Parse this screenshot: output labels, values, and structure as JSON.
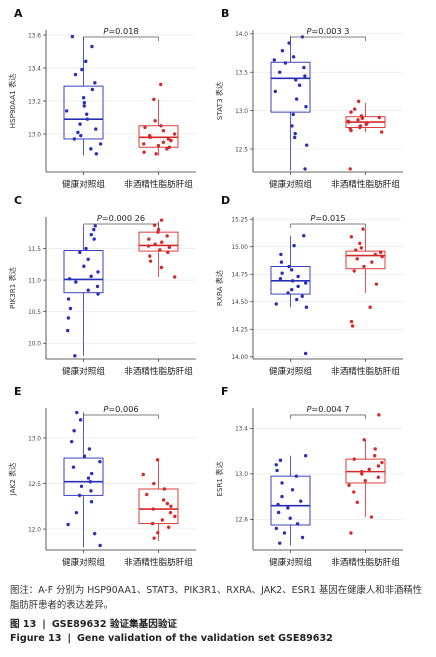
{
  "chart_data": [
    {
      "type": "box",
      "panel_label": "A",
      "ylabel": "HSP90AA1 表达",
      "categories": [
        "健康对照组",
        "非酒精性脂肪肝组"
      ],
      "ylim": [
        12.77,
        13.63
      ],
      "yticks": [
        13.0,
        13.2,
        13.4,
        13.6
      ],
      "ytick_labels": [
        "13.0",
        "13.2",
        "13.4",
        "13.6"
      ],
      "pvalue_label": "P=0.018",
      "series": [
        {
          "box": {
            "q1": 12.97,
            "median": 13.09,
            "q3": 13.29,
            "whisker_low": 12.87,
            "whisker_high": 13.59
          },
          "points": [
            13.59,
            13.53,
            13.44,
            13.39,
            13.36,
            13.31,
            13.27,
            13.22,
            13.19,
            13.17,
            13.14,
            13.12,
            13.09,
            13.06,
            13.03,
            13.01,
            12.99,
            12.97,
            12.94,
            12.91,
            12.88
          ]
        },
        {
          "box": {
            "q1": 12.92,
            "median": 12.98,
            "q3": 13.05,
            "whisker_low": 12.87,
            "whisker_high": 13.21
          },
          "points": [
            13.3,
            13.21,
            13.08,
            13.05,
            13.04,
            13.02,
            13.0,
            12.99,
            12.98,
            12.97,
            12.96,
            12.95,
            12.94,
            12.93,
            12.92,
            12.91,
            12.89,
            12.88
          ]
        }
      ]
    },
    {
      "type": "box",
      "panel_label": "B",
      "ylabel": "STAT3 表达",
      "categories": [
        "健康对照组",
        "非酒精性脂肪肝组"
      ],
      "ylim": [
        12.2,
        14.05
      ],
      "yticks": [
        12.5,
        13.0,
        13.5,
        14.0
      ],
      "ytick_labels": [
        "12.5",
        "13.0",
        "13.5",
        "14.0"
      ],
      "pvalue_label": "P=0.003 3",
      "series": [
        {
          "box": {
            "q1": 12.98,
            "median": 13.42,
            "q3": 13.63,
            "whisker_low": 12.22,
            "whisker_high": 13.97
          },
          "points": [
            13.96,
            13.88,
            13.78,
            13.7,
            13.66,
            13.62,
            13.56,
            13.5,
            13.45,
            13.4,
            13.33,
            13.25,
            13.15,
            13.05,
            12.95,
            12.8,
            12.7,
            12.65,
            12.55,
            12.24
          ]
        },
        {
          "box": {
            "q1": 12.78,
            "median": 12.85,
            "q3": 12.92,
            "whisker_low": 12.72,
            "whisker_high": 13.1
          },
          "points": [
            13.12,
            13.02,
            12.98,
            12.93,
            12.91,
            12.9,
            12.88,
            12.86,
            12.85,
            12.84,
            12.82,
            12.8,
            12.78,
            12.76,
            12.74,
            12.72,
            12.24
          ]
        }
      ]
    },
    {
      "type": "box",
      "panel_label": "C",
      "ylabel": "PIK3R1 表达",
      "categories": [
        "健康对照组",
        "非酒精性脂肪肝组"
      ],
      "ylim": [
        9.75,
        12.0
      ],
      "yticks": [
        10.0,
        10.5,
        11.0,
        11.5
      ],
      "ytick_labels": [
        "10.0",
        "10.5",
        "11.0",
        "11.5"
      ],
      "pvalue_label": "P=0.000 26",
      "series": [
        {
          "box": {
            "q1": 10.8,
            "median": 11.01,
            "q3": 11.47,
            "whisker_low": 9.8,
            "whisker_high": 11.85
          },
          "points": [
            11.86,
            11.8,
            11.72,
            11.65,
            11.5,
            11.44,
            11.33,
            11.22,
            11.13,
            11.06,
            11.02,
            10.97,
            10.9,
            10.84,
            10.78,
            10.7,
            10.55,
            10.4,
            10.2,
            9.8
          ]
        },
        {
          "box": {
            "q1": 11.46,
            "median": 11.55,
            "q3": 11.76,
            "whisker_low": 11.05,
            "whisker_high": 11.93
          },
          "points": [
            11.95,
            11.87,
            11.8,
            11.76,
            11.7,
            11.65,
            11.6,
            11.57,
            11.54,
            11.52,
            11.48,
            11.44,
            11.38,
            11.3,
            11.2,
            11.05
          ]
        }
      ]
    },
    {
      "type": "box",
      "panel_label": "D",
      "ylabel": "RXRA 表达",
      "categories": [
        "健康对照组",
        "非酒精性脂肪肝组"
      ],
      "ylim": [
        13.98,
        15.27
      ],
      "yticks": [
        14.0,
        14.25,
        14.5,
        14.75,
        15.0,
        15.25
      ],
      "ytick_labels": [
        "14.00",
        "14.25",
        "14.50",
        "14.75",
        "15.00",
        "15.25"
      ],
      "pvalue_label": "P=0.015",
      "series": [
        {
          "box": {
            "q1": 14.57,
            "median": 14.69,
            "q3": 14.82,
            "whisker_low": 14.45,
            "whisker_high": 15.1
          },
          "points": [
            15.1,
            15.01,
            14.93,
            14.86,
            14.82,
            14.79,
            14.76,
            14.73,
            14.71,
            14.69,
            14.67,
            14.64,
            14.61,
            14.58,
            14.55,
            14.52,
            14.48,
            14.45,
            14.03
          ]
        },
        {
          "box": {
            "q1": 14.8,
            "median": 14.92,
            "q3": 14.96,
            "whisker_low": 14.58,
            "whisker_high": 15.16
          },
          "points": [
            15.16,
            15.09,
            15.03,
            14.99,
            14.97,
            14.95,
            14.93,
            14.91,
            14.89,
            14.86,
            14.82,
            14.78,
            14.66,
            14.45,
            14.32,
            14.28
          ]
        }
      ]
    },
    {
      "type": "box",
      "panel_label": "E",
      "ylabel": "JAK2 表达",
      "categories": [
        "健康对照组",
        "非酒精性脂肪肝组"
      ],
      "ylim": [
        11.77,
        13.33
      ],
      "yticks": [
        12.0,
        12.5,
        13.0
      ],
      "ytick_labels": [
        "12.0",
        "12.5",
        "13.0"
      ],
      "pvalue_label": "P=0.006",
      "series": [
        {
          "box": {
            "q1": 12.37,
            "median": 12.52,
            "q3": 12.78,
            "whisker_low": 11.8,
            "whisker_high": 13.28
          },
          "points": [
            13.28,
            13.2,
            13.08,
            12.96,
            12.88,
            12.8,
            12.74,
            12.68,
            12.61,
            12.56,
            12.52,
            12.47,
            12.42,
            12.37,
            12.3,
            12.18,
            12.05,
            11.95,
            11.82
          ]
        },
        {
          "box": {
            "q1": 12.06,
            "median": 12.22,
            "q3": 12.44,
            "whisker_low": 11.87,
            "whisker_high": 12.76
          },
          "points": [
            12.76,
            12.6,
            12.5,
            12.44,
            12.38,
            12.32,
            12.28,
            12.25,
            12.22,
            12.18,
            12.14,
            12.1,
            12.06,
            12.02,
            11.96,
            11.9
          ]
        }
      ]
    },
    {
      "type": "box",
      "panel_label": "F",
      "ylabel": "ESR1 表达",
      "categories": [
        "健康对照组",
        "非酒精性脂肪肝组"
      ],
      "ylim": [
        12.33,
        13.58
      ],
      "yticks": [
        12.6,
        13.0,
        13.4
      ],
      "ytick_labels": [
        "12.6",
        "13.0",
        "13.4"
      ],
      "pvalue_label": "P=0.004 7",
      "series": [
        {
          "box": {
            "q1": 12.55,
            "median": 12.72,
            "q3": 12.98,
            "whisker_low": 12.37,
            "whisker_high": 13.16
          },
          "points": [
            13.16,
            13.12,
            13.08,
            13.03,
            12.98,
            12.92,
            12.86,
            12.8,
            12.76,
            12.73,
            12.7,
            12.66,
            12.61,
            12.56,
            12.52,
            12.48,
            12.44,
            12.39
          ]
        },
        {
          "box": {
            "q1": 12.92,
            "median": 13.02,
            "q3": 13.13,
            "whisker_low": 12.62,
            "whisker_high": 13.3
          },
          "points": [
            13.52,
            13.3,
            13.22,
            13.16,
            13.13,
            13.1,
            13.07,
            13.04,
            13.02,
            13.0,
            12.97,
            12.94,
            12.9,
            12.84,
            12.75,
            12.62,
            12.48
          ]
        }
      ]
    }
  ],
  "colors": {
    "control": "#2b2fb8",
    "nafld": "#d62a2a",
    "axis": "#333333",
    "grid": "#e6e6e6",
    "bracket": "#555555"
  },
  "note": "图注：A-F 分别为 HSP90AA1、STAT3、PIK3R1、RXRA、JAK2、ESR1 基因在健康人和非酒精性脂肪肝患者的表达差异。",
  "caption_cn_label": "图 13",
  "caption_cn_text": "GSE89632 验证集基因验证",
  "caption_en_label": "Figure 13",
  "caption_en_text": "Gene validation of the validation set GSE89632",
  "caption_sep": "|"
}
